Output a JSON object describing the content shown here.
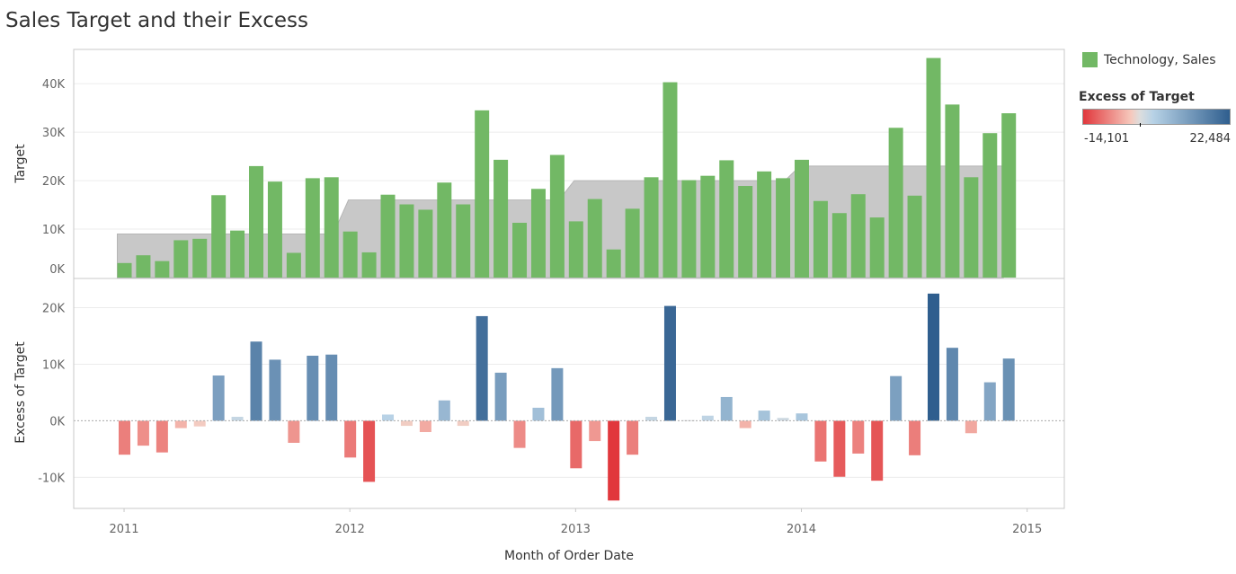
{
  "title": "Sales Target and their Excess",
  "colors": {
    "sales": "#72b865",
    "target_band": "#c8c8c8",
    "neg_max": "#e1373c",
    "neg_light": "#f6c9bd",
    "mid": "#dddddd",
    "pos_light": "#b7d2e6",
    "pos_max": "#2f5e8e"
  },
  "legend": {
    "sales_label": "Technology, Sales",
    "excess_title": "Excess of Target",
    "excess_min_label": "-14,101",
    "excess_max_label": "22,484"
  },
  "chart_data": {
    "type": "bar",
    "xlabel": "Month of Order Date",
    "x_ticks": [
      "2011",
      "2012",
      "2013",
      "2014",
      "2015"
    ],
    "months": [
      "2011-01",
      "2011-02",
      "2011-03",
      "2011-04",
      "2011-05",
      "2011-06",
      "2011-07",
      "2011-08",
      "2011-09",
      "2011-10",
      "2011-11",
      "2011-12",
      "2012-01",
      "2012-02",
      "2012-03",
      "2012-04",
      "2012-05",
      "2012-06",
      "2012-07",
      "2012-08",
      "2012-09",
      "2012-10",
      "2012-11",
      "2012-12",
      "2013-01",
      "2013-02",
      "2013-03",
      "2013-04",
      "2013-05",
      "2013-06",
      "2013-07",
      "2013-08",
      "2013-09",
      "2013-10",
      "2013-11",
      "2013-12",
      "2014-01",
      "2014-02",
      "2014-03",
      "2014-04",
      "2014-05",
      "2014-06",
      "2014-07",
      "2014-08",
      "2014-09",
      "2014-10",
      "2014-11",
      "2014-12"
    ],
    "panels": [
      {
        "ylabel": "Target",
        "ylim": [
          0,
          48000
        ],
        "y_ticks": [
          {
            "value": 0,
            "label": "0K"
          },
          {
            "value": 10000,
            "label": "10K"
          },
          {
            "value": 20000,
            "label": "20K"
          },
          {
            "value": 30000,
            "label": "30K"
          },
          {
            "value": 40000,
            "label": "40K"
          }
        ],
        "target_by_year": [
          {
            "year": "2011",
            "value": 9000
          },
          {
            "year": "2012",
            "value": 16000
          },
          {
            "year": "2013",
            "value": 20000
          },
          {
            "year": "2014",
            "value": 23000
          }
        ],
        "series": [
          {
            "name": "Technology, Sales",
            "values": [
              3000,
              4600,
              3400,
              7700,
              8000,
              17000,
              9700,
              23000,
              19800,
              5100,
              20500,
              20700,
              9500,
              5200,
              17100,
              15100,
              14000,
              19600,
              15100,
              34500,
              24300,
              11300,
              18300,
              25300,
              11600,
              16200,
              5800,
              14200,
              20700,
              40300,
              20100,
              21000,
              24200,
              18900,
              21900,
              20500,
              24300,
              15800,
              13300,
              17200,
              12400,
              30900,
              16900,
              45300,
              35700,
              20700,
              29800,
              33900
            ]
          }
        ]
      },
      {
        "ylabel": "Excess of Target",
        "ylim": [
          -15500,
          25000
        ],
        "y_ticks": [
          {
            "value": -10000,
            "label": "-10K"
          },
          {
            "value": 0,
            "label": "0K"
          },
          {
            "value": 10000,
            "label": "10K"
          },
          {
            "value": 20000,
            "label": "20K"
          }
        ],
        "series": [
          {
            "name": "Excess of Target",
            "values": [
              -6000,
              -4400,
              -5600,
              -1300,
              -1000,
              8000,
              700,
              14000,
              10800,
              -3900,
              11500,
              11700,
              -6500,
              -10800,
              1100,
              -900,
              -2000,
              3600,
              -900,
              18500,
              8500,
              -4800,
              2300,
              9300,
              -8400,
              -3600,
              -14101,
              -6000,
              700,
              20300,
              100,
              900,
              4200,
              -1300,
              1800,
              500,
              1300,
              -7200,
              -9900,
              -5800,
              -10600,
              7900,
              -6100,
              22484,
              12900,
              -2200,
              6800,
              11000
            ]
          }
        ]
      }
    ]
  }
}
